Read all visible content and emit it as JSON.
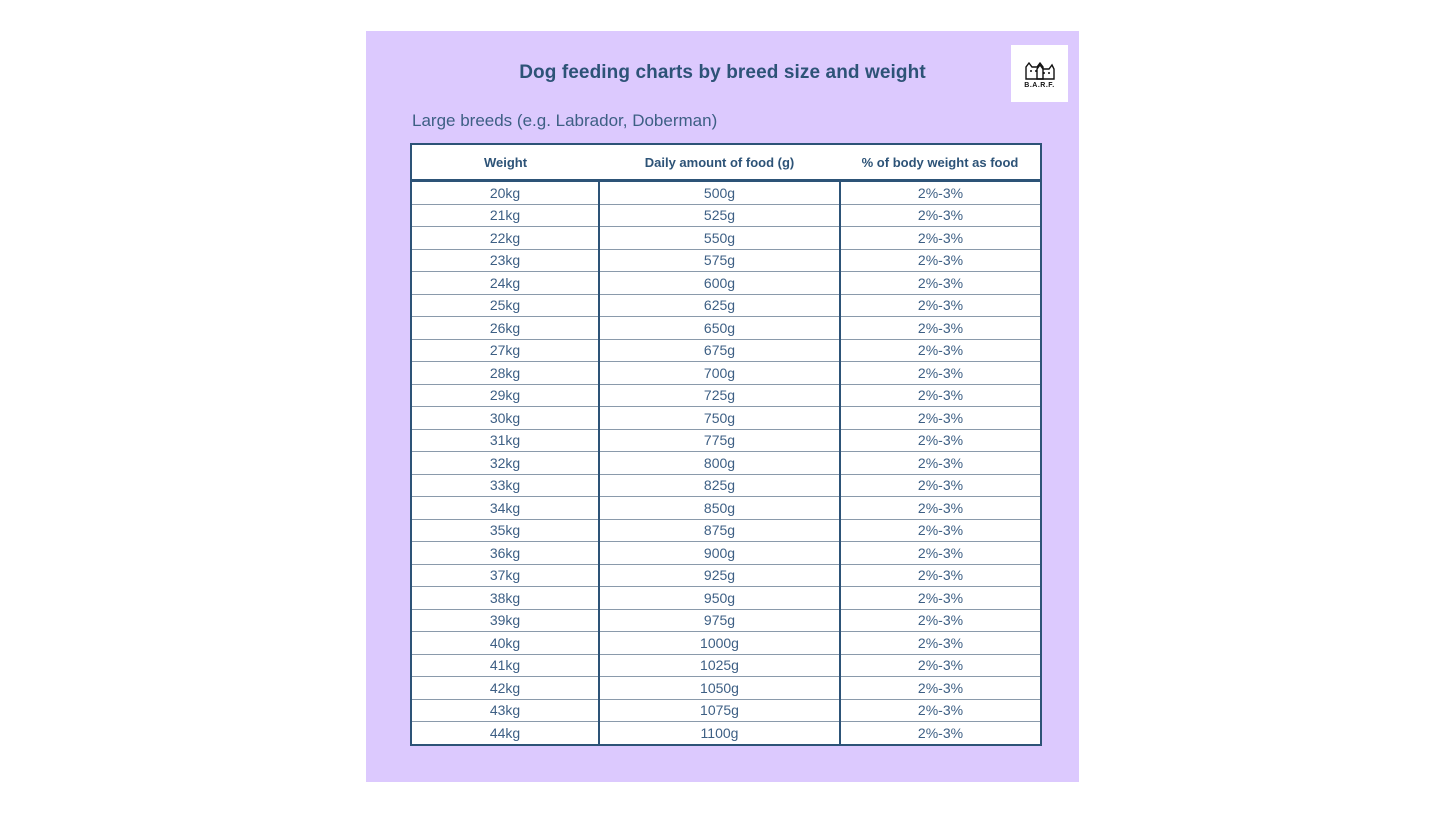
{
  "title": "Dog feeding charts by breed size and weight",
  "logo": {
    "text": "B.A.R.F."
  },
  "subtitle": "Large breeds (e.g. Labrador, Doberman)",
  "table": {
    "headers": [
      "Weight",
      "Daily amount of food (g)",
      "% of body weight as food"
    ],
    "rows": [
      [
        "20kg",
        "500g",
        "2%-3%"
      ],
      [
        "21kg",
        "525g",
        "2%-3%"
      ],
      [
        "22kg",
        "550g",
        "2%-3%"
      ],
      [
        "23kg",
        "575g",
        "2%-3%"
      ],
      [
        "24kg",
        "600g",
        "2%-3%"
      ],
      [
        "25kg",
        "625g",
        "2%-3%"
      ],
      [
        "26kg",
        "650g",
        "2%-3%"
      ],
      [
        "27kg",
        "675g",
        "2%-3%"
      ],
      [
        "28kg",
        "700g",
        "2%-3%"
      ],
      [
        "29kg",
        "725g",
        "2%-3%"
      ],
      [
        "30kg",
        "750g",
        "2%-3%"
      ],
      [
        "31kg",
        "775g",
        "2%-3%"
      ],
      [
        "32kg",
        "800g",
        "2%-3%"
      ],
      [
        "33kg",
        "825g",
        "2%-3%"
      ],
      [
        "34kg",
        "850g",
        "2%-3%"
      ],
      [
        "35kg",
        "875g",
        "2%-3%"
      ],
      [
        "36kg",
        "900g",
        "2%-3%"
      ],
      [
        "37kg",
        "925g",
        "2%-3%"
      ],
      [
        "38kg",
        "950g",
        "2%-3%"
      ],
      [
        "39kg",
        "975g",
        "2%-3%"
      ],
      [
        "40kg",
        "1000g",
        "2%-3%"
      ],
      [
        "41kg",
        "1025g",
        "2%-3%"
      ],
      [
        "42kg",
        "1050g",
        "2%-3%"
      ],
      [
        "43kg",
        "1075g",
        "2%-3%"
      ],
      [
        "44kg",
        "1100g",
        "2%-3%"
      ]
    ]
  },
  "colors": {
    "background": "#dcc9fe",
    "text": "#2d5377"
  }
}
